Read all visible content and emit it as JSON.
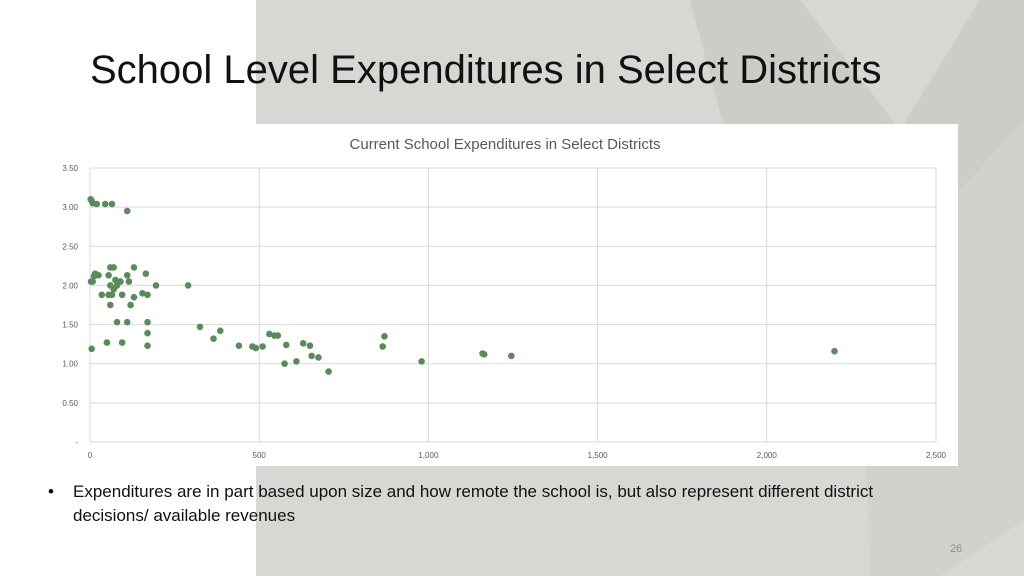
{
  "slide": {
    "title": "School Level Expenditures in Select Districts",
    "bullet_symbol": "•",
    "bullet": "Expenditures are in part based upon size and how remote the school is, but also represent different district decisions/ available revenues",
    "page_number": "26",
    "background_shape_color": "#d6d8d3"
  },
  "chart_data": {
    "type": "scatter",
    "title": "Current School Expenditures in Select Districts",
    "xlabel": "",
    "ylabel": "",
    "xlim": [
      0,
      2500
    ],
    "ylim": [
      0,
      3.5
    ],
    "x_ticks": [
      0,
      500,
      1000,
      1500,
      2000,
      2500
    ],
    "x_tick_labels": [
      "0",
      "500",
      "1,000",
      "1,500",
      "2,000",
      "2,500"
    ],
    "y_ticks": [
      0,
      0.5,
      1.0,
      1.5,
      2.0,
      2.5,
      3.0,
      3.5
    ],
    "y_tick_labels": [
      "-",
      "0.50",
      "1.00",
      "1.50",
      "2.00",
      "2.50",
      "3.00",
      "3.50"
    ],
    "grid": true,
    "marker_color": "#5b8a5b",
    "series": [
      {
        "points": [
          [
            2,
            3.1
          ],
          [
            5,
            3.08
          ],
          [
            8,
            3.05
          ],
          [
            20,
            3.04
          ],
          [
            45,
            3.04
          ],
          [
            65,
            3.04
          ],
          [
            110,
            2.95
          ],
          [
            3,
            2.05
          ],
          [
            8,
            2.05
          ],
          [
            12,
            2.12
          ],
          [
            15,
            2.15
          ],
          [
            25,
            2.13
          ],
          [
            55,
            2.13
          ],
          [
            60,
            2.23
          ],
          [
            70,
            2.23
          ],
          [
            75,
            2.07
          ],
          [
            90,
            2.05
          ],
          [
            110,
            2.13
          ],
          [
            115,
            2.05
          ],
          [
            130,
            2.23
          ],
          [
            165,
            2.15
          ],
          [
            195,
            2.0
          ],
          [
            290,
            2.0
          ],
          [
            35,
            1.88
          ],
          [
            55,
            1.88
          ],
          [
            60,
            2.0
          ],
          [
            65,
            1.88
          ],
          [
            70,
            1.95
          ],
          [
            80,
            2.0
          ],
          [
            95,
            1.88
          ],
          [
            120,
            1.75
          ],
          [
            130,
            1.85
          ],
          [
            155,
            1.9
          ],
          [
            170,
            1.88
          ],
          [
            60,
            1.75
          ],
          [
            80,
            1.53
          ],
          [
            110,
            1.53
          ],
          [
            170,
            1.53
          ],
          [
            170,
            1.39
          ],
          [
            170,
            1.23
          ],
          [
            5,
            1.19
          ],
          [
            50,
            1.27
          ],
          [
            95,
            1.27
          ],
          [
            325,
            1.47
          ],
          [
            365,
            1.32
          ],
          [
            385,
            1.42
          ],
          [
            440,
            1.23
          ],
          [
            480,
            1.22
          ],
          [
            490,
            1.2
          ],
          [
            510,
            1.22
          ],
          [
            530,
            1.38
          ],
          [
            545,
            1.36
          ],
          [
            555,
            1.36
          ],
          [
            580,
            1.24
          ],
          [
            575,
            1.0
          ],
          [
            610,
            1.03
          ],
          [
            630,
            1.26
          ],
          [
            650,
            1.23
          ],
          [
            655,
            1.1
          ],
          [
            675,
            1.08
          ],
          [
            705,
            0.9
          ],
          [
            865,
            1.22
          ],
          [
            870,
            1.35
          ],
          [
            980,
            1.03
          ],
          [
            1160,
            1.13
          ],
          [
            1165,
            1.12
          ],
          [
            1245,
            1.1
          ],
          [
            2200,
            1.16
          ]
        ]
      }
    ]
  }
}
